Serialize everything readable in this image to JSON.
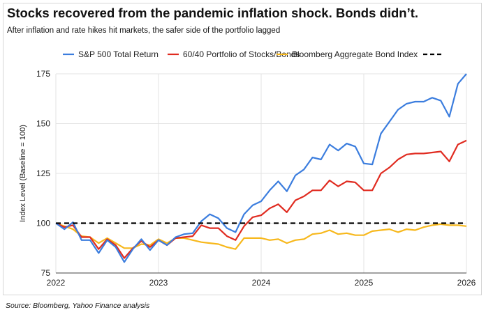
{
  "chart_data": {
    "type": "line",
    "title": "Stocks recovered from the pandemic inflation shock. Bonds didn’t.",
    "subtitle": "After inflation and rate hikes hit markets, the safer side of the portfolio lagged",
    "source": "Source: Bloomberg, Yahoo Finance analysis",
    "ylabel": "Index Level (Baseline = 100)",
    "xlabel": "",
    "xlim": [
      2022,
      2026
    ],
    "ylim": [
      75,
      175
    ],
    "xticks": [
      "2022",
      "2023",
      "2024",
      "2025",
      "2026"
    ],
    "yticks": [
      "75",
      "100",
      "125",
      "150",
      "175"
    ],
    "grid": true,
    "legend": "top",
    "x": [
      2022.0,
      2022.083,
      2022.167,
      2022.25,
      2022.333,
      2022.417,
      2022.5,
      2022.583,
      2022.667,
      2022.75,
      2022.833,
      2022.917,
      2023.0,
      2023.083,
      2023.167,
      2023.25,
      2023.333,
      2023.417,
      2023.5,
      2023.583,
      2023.667,
      2023.75,
      2023.833,
      2023.917,
      2024.0,
      2024.083,
      2024.167,
      2024.25,
      2024.333,
      2024.417,
      2024.5,
      2024.583,
      2024.667,
      2024.75,
      2024.833,
      2024.917,
      2025.0,
      2025.083,
      2025.167,
      2025.25,
      2025.333,
      2025.417,
      2025.5,
      2025.583,
      2025.667,
      2025.75,
      2025.833,
      2025.917,
      2026.0
    ],
    "series": [
      {
        "name": "S&P 500 Total Return",
        "color": "#3b7dde",
        "values": [
          100,
          97,
          100.5,
          91.5,
          91.5,
          85,
          91.5,
          88,
          80.5,
          87,
          92,
          86.5,
          91.5,
          89,
          93,
          94.5,
          95,
          101,
          104.5,
          102.5,
          97.5,
          95.5,
          104.5,
          109,
          111,
          116.5,
          121,
          116,
          124,
          127,
          133,
          132,
          139.5,
          136.5,
          140,
          138.5,
          130,
          129.5,
          145,
          151,
          157,
          160,
          161,
          161,
          163,
          161.5,
          153.5,
          170,
          175
        ]
      },
      {
        "name": "60/40 Portfolio of Stocks/Bonds",
        "color": "#e02b20",
        "values": [
          100,
          98,
          99,
          93,
          93,
          87,
          92,
          89,
          82.5,
          87.5,
          91,
          88,
          91.5,
          89,
          92.5,
          93,
          93.5,
          99,
          97.5,
          97.5,
          93.5,
          91.5,
          98.5,
          103,
          104,
          107.5,
          109.5,
          105.5,
          111.5,
          113.5,
          116.5,
          116.5,
          121.5,
          118.5,
          121,
          120.5,
          116.5,
          116.5,
          125,
          128,
          132,
          134.5,
          135,
          135,
          135.5,
          136,
          131,
          139.5,
          141.5
        ]
      },
      {
        "name": "Bloomberg Aggregate Bond Index",
        "color": "#f7b81c",
        "values": [
          100,
          98.5,
          97,
          93.5,
          93,
          90,
          92.5,
          90,
          87.5,
          87.5,
          89.5,
          89,
          92,
          90,
          92.5,
          92.5,
          91.5,
          90.5,
          90,
          89.5,
          88,
          87,
          92.5,
          92.5,
          92.5,
          91.5,
          92,
          90,
          91.5,
          92,
          94.5,
          95,
          96.5,
          94.5,
          95,
          94,
          94,
          96,
          96.5,
          97,
          95.5,
          97,
          96.5,
          98,
          99,
          99.5,
          99,
          99,
          98.5
        ]
      }
    ],
    "reference_line": {
      "name": "Baseline",
      "value": 100,
      "color": "#000000",
      "style": "dashed"
    }
  }
}
